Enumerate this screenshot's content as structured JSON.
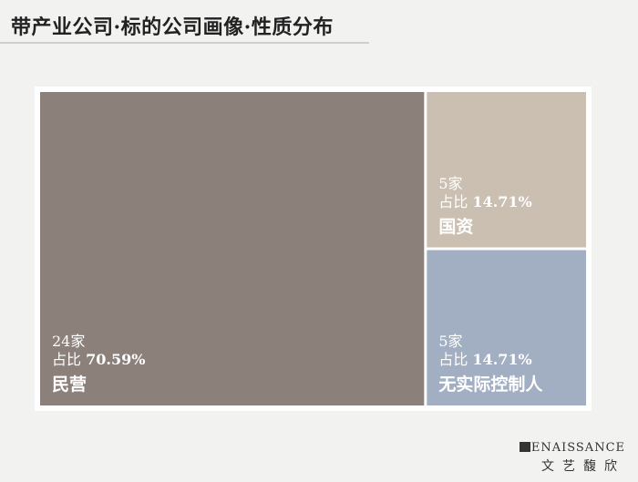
{
  "title": "带产业公司·标的公司画像·性质分布",
  "logo": {
    "en": "ENAISSANCE",
    "cn": "文艺馥欣"
  },
  "colors": {
    "background": "#f2f2f1",
    "panel": "#ffffff"
  },
  "chart_data": {
    "type": "treemap",
    "title": "带产业公司·标的公司画像·性质分布",
    "items": [
      {
        "name": "民营",
        "count": 24,
        "count_label": "24家",
        "share_prefix": "占比",
        "share": 70.59,
        "share_label": "70.59%",
        "color": "#8c807b"
      },
      {
        "name": "国资",
        "count": 5,
        "count_label": "5家",
        "share_prefix": "占比",
        "share": 14.71,
        "share_label": "14.71%",
        "color": "#cbbfb2"
      },
      {
        "name": "无实际控制人",
        "count": 5,
        "count_label": "5家",
        "share_prefix": "占比",
        "share": 14.71,
        "share_label": "14.71%",
        "color": "#a2afc2"
      }
    ]
  }
}
